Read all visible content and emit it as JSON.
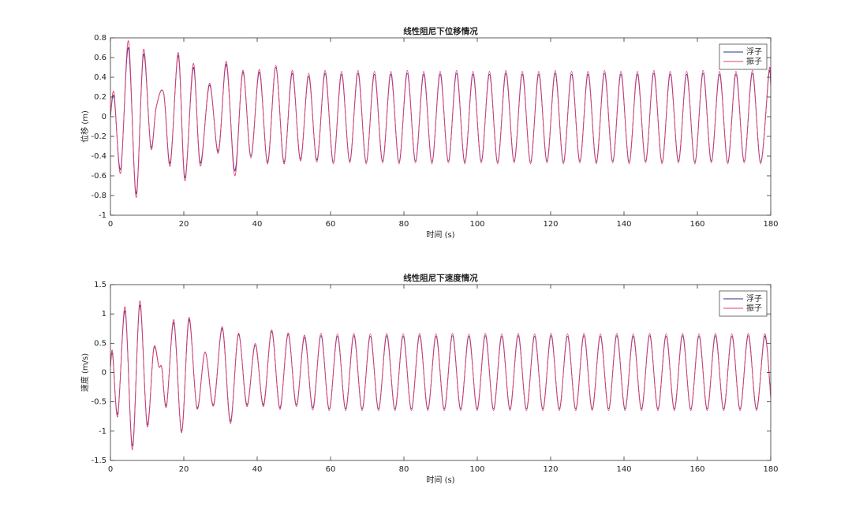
{
  "chart_data": [
    {
      "type": "line",
      "title": "线性阻尼下位移情况",
      "xlabel": "时间 (s)",
      "ylabel": "位移 (m)",
      "xlim": [
        0,
        180
      ],
      "ylim": [
        -1,
        0.8
      ],
      "xticks": [
        0,
        20,
        40,
        60,
        80,
        100,
        120,
        140,
        160,
        180
      ],
      "yticks": [
        -1,
        -0.8,
        -0.6,
        -0.4,
        -0.2,
        0,
        0.2,
        0.4,
        0.6,
        0.8
      ],
      "legend": "upper right",
      "x": [
        0,
        1.0,
        2.8,
        4.9,
        7.0,
        9.0,
        11.0,
        12.5,
        14.5,
        16.3,
        18.5,
        20.3,
        22.6,
        24.5,
        27.0,
        29.4,
        31.6,
        33.9,
        36.1,
        38.3,
        40.6,
        42.84,
        45.08,
        47.32,
        49.56,
        51.8,
        54.04,
        56.28,
        58.52,
        60.76,
        63,
        65.24,
        67.48,
        69.72,
        71.96,
        74.2,
        76.44,
        78.68,
        80.92,
        83.16,
        85.4,
        87.64,
        89.88,
        92.12,
        94.36,
        96.6,
        98.84,
        101.08,
        103.32,
        105.56,
        107.8,
        110.04,
        112.28,
        114.52,
        116.76,
        119,
        121.24,
        123.48,
        125.72,
        127.96,
        130.2,
        132.44,
        134.68,
        136.92,
        139.16,
        141.4,
        143.64,
        145.88,
        148.12,
        150.36,
        152.6,
        154.84,
        157.08,
        159.32,
        161.56,
        163.8,
        166.04,
        168.28,
        170.52,
        172.76,
        175,
        177.24,
        179.48,
        180
      ],
      "series": [
        {
          "name": "浮子",
          "color": "#2b2f8f",
          "values": [
            0,
            0.2,
            -0.53,
            0.7,
            -0.78,
            0.63,
            -0.3,
            0.1,
            0.24,
            -0.47,
            0.62,
            -0.62,
            0.5,
            -0.47,
            0.32,
            -0.35,
            0.53,
            -0.55,
            0.45,
            -0.4,
            0.45,
            -0.46,
            0.5,
            -0.46,
            0.44,
            -0.43,
            0.41,
            -0.44,
            0.44,
            -0.46,
            0.43,
            -0.45,
            0.44,
            -0.46,
            0.43,
            -0.45,
            0.43,
            -0.46,
            0.44,
            -0.45,
            0.43,
            -0.46,
            0.43,
            -0.45,
            0.44,
            -0.46,
            0.43,
            -0.45,
            0.43,
            -0.46,
            0.44,
            -0.45,
            0.43,
            -0.46,
            0.43,
            -0.45,
            0.44,
            -0.46,
            0.43,
            -0.45,
            0.43,
            -0.46,
            0.44,
            -0.45,
            0.43,
            -0.46,
            0.43,
            -0.45,
            0.44,
            -0.46,
            0.43,
            -0.45,
            0.43,
            -0.46,
            0.44,
            -0.45,
            0.43,
            -0.46,
            0.43,
            -0.45,
            0.44,
            -0.46,
            0.43,
            0.32
          ]
        },
        {
          "name": "振子",
          "color": "#e2406e",
          "values": [
            0,
            0.24,
            -0.57,
            0.77,
            -0.82,
            0.68,
            -0.32,
            0.1,
            0.24,
            -0.5,
            0.65,
            -0.65,
            0.54,
            -0.5,
            0.34,
            -0.37,
            0.56,
            -0.6,
            0.47,
            -0.42,
            0.48,
            -0.48,
            0.52,
            -0.48,
            0.47,
            -0.45,
            0.44,
            -0.46,
            0.47,
            -0.48,
            0.46,
            -0.47,
            0.47,
            -0.48,
            0.46,
            -0.47,
            0.46,
            -0.48,
            0.47,
            -0.47,
            0.46,
            -0.48,
            0.46,
            -0.47,
            0.47,
            -0.48,
            0.46,
            -0.47,
            0.46,
            -0.48,
            0.47,
            -0.47,
            0.46,
            -0.48,
            0.46,
            -0.47,
            0.47,
            -0.48,
            0.46,
            -0.47,
            0.46,
            -0.48,
            0.47,
            -0.47,
            0.46,
            -0.48,
            0.46,
            -0.47,
            0.47,
            -0.48,
            0.46,
            -0.47,
            0.46,
            -0.48,
            0.47,
            -0.47,
            0.46,
            -0.48,
            0.46,
            -0.47,
            0.47,
            -0.48,
            0.46,
            0.34
          ]
        }
      ]
    },
    {
      "type": "line",
      "title": "线性阻尼下速度情况",
      "xlabel": "时间 (s)",
      "ylabel": "速度 (m/s)",
      "xlim": [
        0,
        180
      ],
      "ylim": [
        -1.5,
        1.5
      ],
      "xticks": [
        0,
        20,
        40,
        60,
        80,
        100,
        120,
        140,
        160,
        180
      ],
      "yticks": [
        -1.5,
        -1,
        -0.5,
        0,
        0.5,
        1,
        1.5
      ],
      "legend": "upper right",
      "x": [
        0,
        0.6,
        2.0,
        4.0,
        6.0,
        8.0,
        10.0,
        11.8,
        13.2,
        14.0,
        15.3,
        17.3,
        19.4,
        21.4,
        23.6,
        25.8,
        28.1,
        30.5,
        32.7,
        34.9,
        37.2,
        39.48,
        41.72,
        43.96,
        46.2,
        48.44,
        50.68,
        52.92,
        55.16,
        57.4,
        59.64,
        61.88,
        64.12,
        66.36,
        68.6,
        70.84,
        73.08,
        75.32,
        77.56,
        79.8,
        82.04,
        84.28,
        86.52,
        88.76,
        91,
        93.24,
        95.48,
        97.72,
        99.96,
        102.2,
        104.44,
        106.68,
        108.92,
        111.16,
        113.4,
        115.64,
        117.88,
        120.12,
        122.36,
        124.6,
        126.84,
        129.08,
        131.32,
        133.56,
        135.8,
        138.04,
        140.28,
        142.52,
        144.76,
        147,
        149.24,
        151.48,
        153.72,
        155.96,
        158.2,
        160.44,
        162.68,
        164.92,
        167.16,
        169.4,
        171.64,
        173.88,
        176.12,
        178.36,
        180
      ],
      "series": [
        {
          "name": "浮子",
          "color": "#2b2f8f",
          "values": [
            0.1,
            0.3,
            -0.7,
            1.05,
            -1.25,
            1.15,
            -0.88,
            0.4,
            0.1,
            0.08,
            -0.55,
            0.85,
            -1.0,
            0.9,
            -0.6,
            0.35,
            -0.55,
            0.75,
            -0.83,
            0.65,
            -0.55,
            0.47,
            -0.55,
            0.7,
            -0.6,
            0.65,
            -0.55,
            0.6,
            -0.6,
            0.63,
            -0.62,
            0.62,
            -0.62,
            0.63,
            -0.62,
            0.62,
            -0.62,
            0.63,
            -0.62,
            0.62,
            -0.62,
            0.63,
            -0.62,
            0.62,
            -0.62,
            0.63,
            -0.62,
            0.62,
            -0.62,
            0.63,
            -0.62,
            0.62,
            -0.62,
            0.63,
            -0.62,
            0.62,
            -0.62,
            0.63,
            -0.62,
            0.62,
            -0.62,
            0.63,
            -0.62,
            0.62,
            -0.62,
            0.63,
            -0.62,
            0.62,
            -0.62,
            0.63,
            -0.62,
            0.62,
            -0.62,
            0.63,
            -0.62,
            0.62,
            -0.62,
            0.63,
            -0.62,
            0.62,
            -0.62,
            0.63,
            -0.62,
            0.62,
            -0.41
          ]
        },
        {
          "name": "振子",
          "color": "#e2406e",
          "values": [
            0.1,
            0.35,
            -0.75,
            1.12,
            -1.32,
            1.22,
            -0.92,
            0.42,
            0.1,
            0.08,
            -0.58,
            0.9,
            -1.03,
            0.94,
            -0.62,
            0.35,
            -0.57,
            0.78,
            -0.87,
            0.67,
            -0.58,
            0.5,
            -0.58,
            0.73,
            -0.63,
            0.68,
            -0.58,
            0.64,
            -0.64,
            0.67,
            -0.65,
            0.66,
            -0.65,
            0.67,
            -0.65,
            0.66,
            -0.65,
            0.67,
            -0.65,
            0.66,
            -0.65,
            0.67,
            -0.65,
            0.66,
            -0.65,
            0.67,
            -0.65,
            0.66,
            -0.65,
            0.67,
            -0.65,
            0.66,
            -0.65,
            0.67,
            -0.65,
            0.66,
            -0.65,
            0.67,
            -0.65,
            0.66,
            -0.65,
            0.67,
            -0.65,
            0.66,
            -0.65,
            0.67,
            -0.65,
            0.66,
            -0.65,
            0.67,
            -0.65,
            0.66,
            -0.65,
            0.67,
            -0.65,
            0.66,
            -0.65,
            0.67,
            -0.65,
            0.66,
            -0.65,
            0.67,
            -0.65,
            0.66,
            -0.44
          ]
        }
      ]
    }
  ]
}
